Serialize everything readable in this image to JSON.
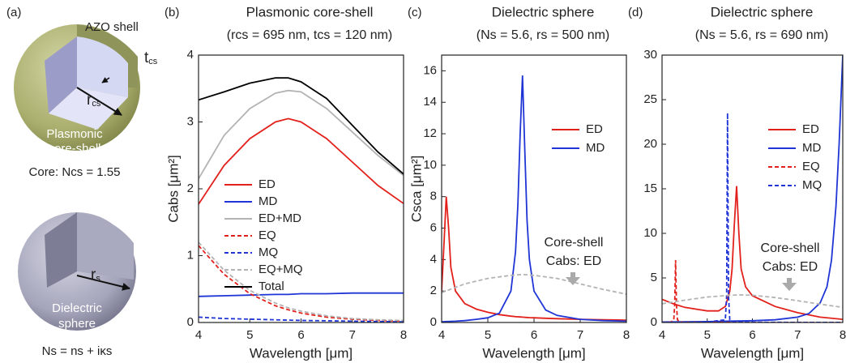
{
  "panel_a": {
    "label": "(a)",
    "shell": "AZO shell",
    "thickness": {
      "symbol": "t",
      "subscript": "cs"
    },
    "core_radius": {
      "symbol": "r",
      "subscript": "cs"
    },
    "core_shell_name": [
      "Plasmonic",
      "core-shell"
    ],
    "core_index": "Core: Ncs = 1.55",
    "sphere_radius": {
      "symbol": "r",
      "subscript": "s"
    },
    "sphere_name": [
      "Dielectric",
      "sphere"
    ],
    "sphere_index": "Ns = ns + iκs"
  },
  "chart_data": [
    {
      "type": "line",
      "panel_label": "(b)",
      "title": "Plasmonic core-shell",
      "subtitle": "(rcs = 695 nm, tcs = 120 nm)",
      "x_label": "Wavelength [μm]",
      "y_label": "Cabs [μm²]",
      "xlim": [
        4,
        8
      ],
      "xticks": [
        4,
        5,
        6,
        7,
        8
      ],
      "ylim": [
        0,
        4
      ],
      "yticks": [
        0,
        1,
        2,
        3,
        4
      ],
      "legend": "center left",
      "series": [
        {
          "name": "ED",
          "color": "#e3211c",
          "x": [
            4,
            4.5,
            5,
            5.5,
            5.75,
            6,
            6.5,
            7,
            7.5,
            8
          ],
          "values": [
            1.77,
            2.35,
            2.75,
            3.0,
            3.05,
            3.0,
            2.75,
            2.4,
            2.05,
            1.78
          ]
        },
        {
          "name": "MD",
          "color": "#1f35d6",
          "x": [
            4,
            4.5,
            5,
            5.5,
            5.75,
            6,
            6.5,
            7,
            7.5,
            8
          ],
          "values": [
            0.39,
            0.4,
            0.41,
            0.42,
            0.42,
            0.43,
            0.43,
            0.44,
            0.44,
            0.44
          ]
        },
        {
          "name": "ED+MD",
          "color": "#b3b3b3",
          "x": [
            4,
            4.5,
            5,
            5.5,
            5.75,
            6,
            6.5,
            7,
            7.5,
            8
          ],
          "values": [
            2.15,
            2.8,
            3.2,
            3.43,
            3.47,
            3.45,
            3.2,
            2.85,
            2.5,
            2.2
          ]
        },
        {
          "name": "EQ",
          "color": "#e3211c",
          "dash": true,
          "x": [
            4,
            4.5,
            5,
            5.5,
            5.75,
            6,
            6.5,
            7,
            7.5,
            8
          ],
          "values": [
            1.15,
            0.72,
            0.43,
            0.25,
            0.19,
            0.14,
            0.08,
            0.05,
            0.03,
            0.02
          ]
        },
        {
          "name": "MQ",
          "color": "#1f35d6",
          "dash": true,
          "x": [
            4,
            4.5,
            5,
            5.5,
            5.75,
            6,
            6.5,
            7,
            7.5,
            8
          ],
          "values": [
            0.08,
            0.06,
            0.05,
            0.04,
            0.035,
            0.03,
            0.025,
            0.02,
            0.015,
            0.01
          ]
        },
        {
          "name": "EQ+MQ",
          "color": "#b3b3b3",
          "dash": true,
          "x": [
            4,
            4.5,
            5,
            5.5,
            5.75,
            6,
            6.5,
            7,
            7.5,
            8
          ],
          "values": [
            1.2,
            0.78,
            0.48,
            0.29,
            0.22,
            0.17,
            0.1,
            0.06,
            0.04,
            0.03
          ]
        },
        {
          "name": "Total",
          "color": "#000000",
          "x": [
            4,
            4.5,
            5,
            5.5,
            5.75,
            6,
            6.5,
            7,
            7.5,
            8
          ],
          "values": [
            3.33,
            3.45,
            3.58,
            3.66,
            3.66,
            3.6,
            3.35,
            2.95,
            2.55,
            2.22
          ]
        }
      ]
    },
    {
      "type": "line",
      "panel_label": "(c)",
      "title": "Dielectric sphere",
      "subtitle": "(Ns = 5.6, rs = 500 nm)",
      "x_label": "Wavelength [μm]",
      "y_label": "Csca [μm²]",
      "xlim": [
        4,
        8
      ],
      "xticks": [
        4,
        5,
        6,
        7,
        8
      ],
      "ylim": [
        0,
        17
      ],
      "yticks": [
        0,
        2,
        4,
        6,
        8,
        10,
        12,
        14,
        16
      ],
      "legend": "upper right",
      "annotation": [
        "Core-shell",
        "Cabs: ED"
      ],
      "series": [
        {
          "name": "ED",
          "color": "#e3211c",
          "x": [
            4,
            4.05,
            4.1,
            4.15,
            4.2,
            4.3,
            4.5,
            4.75,
            5,
            5.25,
            5.5,
            5.6,
            5.65,
            5.7,
            5.75,
            5.8,
            5.85,
            5.9,
            6,
            6.25,
            6.5,
            7,
            7.5,
            8
          ],
          "values": [
            2.0,
            5.0,
            8.0,
            6.0,
            3.5,
            2.0,
            1.2,
            0.85,
            0.65,
            0.5,
            0.4,
            0.37,
            0.36,
            0.35,
            0.34,
            0.33,
            0.32,
            0.31,
            0.3,
            0.27,
            0.24,
            0.2,
            0.17,
            0.15
          ]
        },
        {
          "name": "MD",
          "color": "#1f35d6",
          "x": [
            4,
            4.05,
            4.1,
            4.15,
            4.2,
            4.3,
            4.5,
            4.75,
            5,
            5.25,
            5.5,
            5.6,
            5.65,
            5.7,
            5.75,
            5.8,
            5.85,
            5.9,
            6,
            6.25,
            6.5,
            7,
            7.5,
            8
          ],
          "values": [
            0.05,
            0.05,
            0.06,
            0.06,
            0.07,
            0.08,
            0.12,
            0.2,
            0.3,
            0.6,
            2.0,
            4.5,
            7.5,
            12,
            15.7,
            11,
            6.5,
            4,
            2.0,
            0.8,
            0.45,
            0.2,
            0.12,
            0.08
          ]
        },
        {
          "color": "#b3b3b3",
          "dash": true,
          "x": [
            4,
            4.5,
            5,
            5.5,
            5.75,
            6,
            6.5,
            7,
            7.5,
            8
          ],
          "values": [
            1.9,
            2.45,
            2.8,
            3.0,
            3.05,
            3.0,
            2.8,
            2.45,
            2.1,
            1.8
          ]
        }
      ]
    },
    {
      "type": "line",
      "panel_label": "(d)",
      "title": "Dielectric sphere",
      "subtitle": "(Ns = 5.6, rs = 690 nm)",
      "x_label": "Wavelength [μm]",
      "xlim": [
        4,
        8
      ],
      "xticks": [
        4,
        5,
        6,
        7,
        8
      ],
      "ylim": [
        0,
        30
      ],
      "yticks": [
        0,
        5,
        10,
        15,
        20,
        25,
        30
      ],
      "legend": "upper right",
      "annotation": [
        "Core-shell",
        "Cabs: ED"
      ],
      "series": [
        {
          "name": "ED",
          "color": "#e3211c",
          "x": [
            4,
            4.25,
            4.5,
            5,
            5.25,
            5.4,
            5.5,
            5.55,
            5.6,
            5.65,
            5.7,
            5.75,
            5.85,
            6,
            6.5,
            7,
            7.5,
            8
          ],
          "values": [
            2.6,
            2.1,
            1.7,
            1.3,
            1.3,
            1.8,
            3.5,
            6,
            11,
            15.3,
            10,
            6,
            4,
            3,
            1.8,
            1.1,
            0.6,
            0.35
          ]
        },
        {
          "name": "MD",
          "color": "#1f35d6",
          "x": [
            4,
            5,
            6,
            6.5,
            7,
            7.25,
            7.5,
            7.65,
            7.75,
            7.85,
            7.92,
            8
          ],
          "values": [
            0.05,
            0.1,
            0.2,
            0.3,
            0.6,
            1.0,
            2.2,
            4,
            7,
            13,
            20,
            30
          ]
        },
        {
          "name": "EQ",
          "color": "#e3211c",
          "dash": true,
          "x": [
            4,
            4.2,
            4.26,
            4.28,
            4.3,
            4.32,
            4.34,
            4.4,
            5,
            6,
            8
          ],
          "values": [
            0.02,
            0.05,
            0.3,
            2,
            7,
            2,
            0.3,
            0.05,
            0.02,
            0.01,
            0.01
          ]
        },
        {
          "name": "MQ",
          "color": "#1f35d6",
          "dash": true,
          "x": [
            4,
            5,
            5.4,
            5.43,
            5.45,
            5.47,
            5.5,
            5.6,
            6,
            8
          ],
          "values": [
            0.02,
            0.05,
            0.3,
            3,
            23.5,
            3,
            0.3,
            0.05,
            0.02,
            0.01
          ]
        },
        {
          "color": "#b3b3b3",
          "dash": true,
          "x": [
            4,
            4.5,
            5,
            5.5,
            5.75,
            6,
            6.5,
            7,
            7.5,
            8
          ],
          "values": [
            2.1,
            2.5,
            2.85,
            3.05,
            3.1,
            3.05,
            2.8,
            2.45,
            2.05,
            1.7
          ]
        }
      ]
    }
  ]
}
